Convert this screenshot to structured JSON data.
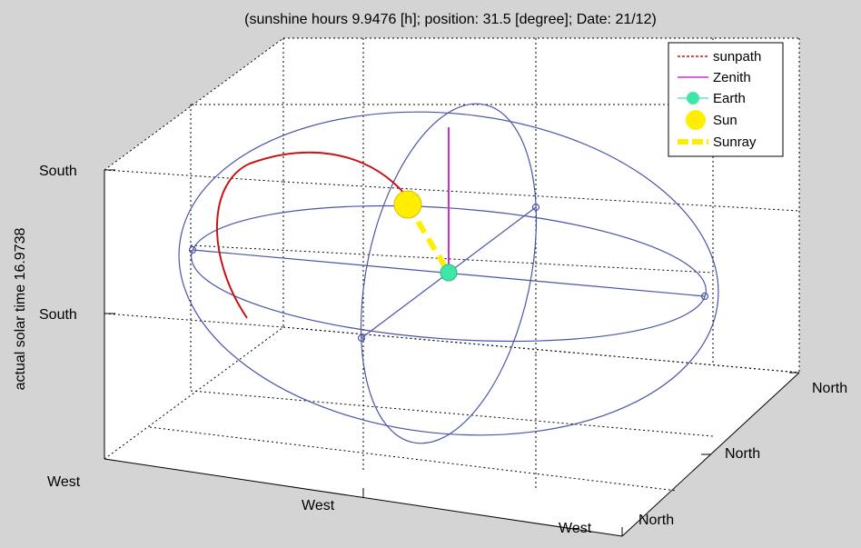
{
  "title": "(sunshine hours 9.9476 [h]; position: 31.5  [degree]; Date: 21/12)",
  "ylabel": "actual solar time  16.9738",
  "ticks": {
    "z_top": "South",
    "z_mid": "South",
    "x_1": "West",
    "x_2": "West",
    "x_3": "West",
    "y_1": "North",
    "y_2": "North",
    "y_3": "North"
  },
  "legend": {
    "sunpath": "sunpath",
    "zenith": "Zenith",
    "earth": "Earth",
    "sun": "Sun",
    "sunray": "Sunray"
  },
  "colors": {
    "sunpath": "#c81414",
    "zenith": "#c832c8",
    "earth": "#3fe6a8",
    "sun": "#ffee00",
    "sunray": "#ffee00",
    "orbit": "#4b55a8",
    "background": "#d4d4d4",
    "axes_face": "#ffffff"
  }
}
